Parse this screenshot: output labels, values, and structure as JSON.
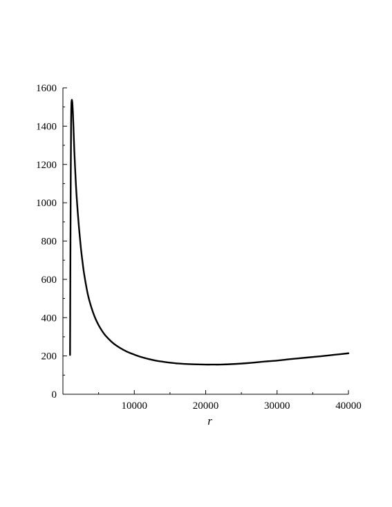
{
  "chart_data": {
    "type": "line",
    "title": "",
    "xlabel": "r",
    "ylabel": "",
    "xlim": [
      0,
      40000
    ],
    "ylim": [
      0,
      1600
    ],
    "x_ticks": [
      10000,
      20000,
      30000,
      40000
    ],
    "x_tick_labels": [
      "10000",
      "20000",
      "30000",
      "40000"
    ],
    "x_minor_ticks": [
      5000,
      15000,
      25000,
      35000
    ],
    "y_ticks": [
      0,
      200,
      400,
      600,
      800,
      1000,
      1200,
      1400,
      1600
    ],
    "y_tick_labels": [
      "0",
      "200",
      "400",
      "600",
      "800",
      "1000",
      "1200",
      "1400",
      "1600"
    ],
    "y_minor_ticks": [
      100,
      300,
      500,
      700,
      900,
      1100,
      1300,
      1500
    ],
    "grid": false,
    "series": [
      {
        "color": "#000000",
        "x": [
          1000,
          1050,
          1100,
          1150,
          1200,
          1300,
          1400,
          1500,
          1600,
          1800,
          2000,
          2250,
          2500,
          2750,
          3000,
          3500,
          4000,
          4500,
          5000,
          5500,
          6000,
          7000,
          8000,
          9000,
          10000,
          11000,
          12000,
          13000,
          14000,
          15000,
          16000,
          18000,
          20000,
          21000,
          22000,
          24000,
          26000,
          28000,
          30000,
          32000,
          34000,
          36000,
          38000,
          40000
        ],
        "y": [
          205,
          700,
          1150,
          1430,
          1525,
          1530,
          1470,
          1370,
          1270,
          1110,
          990,
          870,
          770,
          690,
          622,
          520,
          452,
          400,
          361,
          330,
          305,
          268,
          242,
          222,
          207,
          194,
          184,
          176,
          170,
          165,
          161,
          157,
          155,
          155,
          155,
          158,
          163,
          170,
          176,
          184,
          191,
          198,
          206,
          214
        ]
      }
    ]
  }
}
